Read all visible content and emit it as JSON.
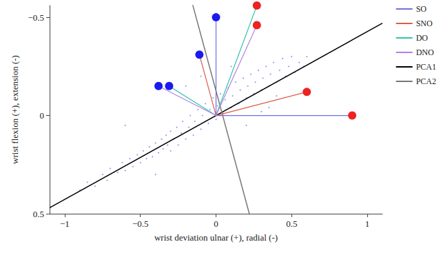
{
  "chart_data": {
    "type": "scatter",
    "x_label": "wrist deviation ulnar (+), radial (-)",
    "y_label": "wrist flexion (+), extension (-)",
    "xlim": [
      -1.1,
      1.1
    ],
    "xticks": [
      {
        "value": -1,
        "label": "−1"
      },
      {
        "value": -0.5,
        "label": "−0.5"
      },
      0,
      0.5,
      1
    ],
    "ylim": [
      -0.56,
      0.5
    ],
    "yticks": [
      {
        "value": -0.5,
        "label": "−0.5"
      },
      0,
      0.5
    ],
    "inverted_y": true,
    "grid": false,
    "legend": "right",
    "series": [
      {
        "type": "scatter",
        "color": "#8080f0",
        "marker": "dot",
        "values": [
          [
            -0.9,
            0.38
          ],
          [
            -0.85,
            0.34
          ],
          [
            -0.8,
            0.36
          ],
          [
            -0.75,
            0.3
          ],
          [
            -0.72,
            0.33
          ],
          [
            -0.7,
            0.27
          ],
          [
            -0.65,
            0.29
          ],
          [
            -0.62,
            0.24
          ],
          [
            -0.6,
            0.28
          ],
          [
            -0.57,
            0.22
          ],
          [
            -0.55,
            0.26
          ],
          [
            -0.52,
            0.2
          ],
          [
            -0.5,
            0.24
          ],
          [
            -0.48,
            0.18
          ],
          [
            -0.46,
            0.22
          ],
          [
            -0.44,
            0.16
          ],
          [
            -0.42,
            0.21
          ],
          [
            -0.4,
            0.14
          ],
          [
            -0.38,
            0.19
          ],
          [
            -0.36,
            0.12
          ],
          [
            -0.35,
            0.17
          ],
          [
            -0.33,
            0.1
          ],
          [
            -0.32,
            0.15
          ],
          [
            -0.3,
            0.08
          ],
          [
            -0.3,
            0.18
          ],
          [
            -0.28,
            0.12
          ],
          [
            -0.26,
            0.06
          ],
          [
            -0.25,
            0.15
          ],
          [
            -0.23,
            0.09
          ],
          [
            -0.22,
            0.03
          ],
          [
            -0.2,
            0.12
          ],
          [
            -0.18,
            0.06
          ],
          [
            -0.17,
            0.0
          ],
          [
            -0.15,
            0.1
          ],
          [
            -0.14,
            0.03
          ],
          [
            -0.12,
            -0.03
          ],
          [
            -0.1,
            0.07
          ],
          [
            -0.09,
            0.0
          ],
          [
            -0.07,
            -0.06
          ],
          [
            -0.05,
            0.04
          ],
          [
            -0.04,
            -0.03
          ],
          [
            -0.02,
            -0.09
          ],
          [
            0,
            0.02
          ],
          [
            0.01,
            -0.05
          ],
          [
            0.03,
            -0.11
          ],
          [
            0.05,
            -0.01
          ],
          [
            0.06,
            -0.08
          ],
          [
            0.08,
            -0.14
          ],
          [
            0.1,
            -0.04
          ],
          [
            0.11,
            -0.1
          ],
          [
            0.13,
            -0.17
          ],
          [
            0.15,
            -0.06
          ],
          [
            0.16,
            -0.13
          ],
          [
            0.18,
            -0.19
          ],
          [
            0.2,
            -0.09
          ],
          [
            0.21,
            -0.15
          ],
          [
            0.23,
            -0.21
          ],
          [
            0.25,
            -0.11
          ],
          [
            0.26,
            -0.17
          ],
          [
            0.28,
            -0.23
          ],
          [
            0.3,
            -0.13
          ],
          [
            0.31,
            -0.19
          ],
          [
            0.33,
            -0.25
          ],
          [
            0.35,
            -0.15
          ],
          [
            0.36,
            -0.21
          ],
          [
            0.38,
            -0.27
          ],
          [
            0.4,
            -0.17
          ],
          [
            0.42,
            -0.23
          ],
          [
            0.44,
            -0.29
          ],
          [
            0.46,
            -0.2
          ],
          [
            0.48,
            -0.25
          ],
          [
            0.5,
            -0.3
          ],
          [
            0.52,
            -0.22
          ],
          [
            0.55,
            -0.27
          ],
          [
            0.58,
            -0.25
          ],
          [
            0.6,
            -0.3
          ],
          [
            0.3,
            -0.02
          ],
          [
            0.35,
            -0.04
          ],
          [
            -0.2,
            -0.15
          ],
          [
            -0.6,
            0.05
          ],
          [
            0.1,
            -0.25
          ],
          [
            -0.1,
            -0.2
          ],
          [
            0.2,
            0.05
          ],
          [
            -0.4,
            0.3
          ],
          [
            0.4,
            -0.1
          ]
        ]
      },
      {
        "name": "SO",
        "type": "line",
        "color": "#7070e0",
        "marker": "circle",
        "values": [
          [
            0.9,
            0
          ],
          [
            0,
            0
          ],
          [
            0,
            -0.5
          ]
        ],
        "colors": [
          "#ee2222",
          null,
          "#1a1aee"
        ]
      },
      {
        "name": "SNO",
        "type": "line",
        "color": "#e05a4a",
        "marker": "circle",
        "values": [
          [
            0.6,
            -0.12
          ],
          [
            0,
            0
          ],
          [
            -0.11,
            -0.31
          ]
        ],
        "colors": [
          "#ee2222",
          null,
          "#1a1aee"
        ]
      },
      {
        "name": "DO",
        "type": "line",
        "color": "#33c4a8",
        "marker": "circle",
        "values": [
          [
            0.27,
            -0.56
          ],
          [
            0,
            0
          ],
          [
            -0.31,
            -0.15
          ]
        ],
        "colors": [
          "#ee2222",
          null,
          "#1a1aee"
        ]
      },
      {
        "name": "DNO",
        "type": "line",
        "color": "#b080e8",
        "marker": "circle",
        "values": [
          [
            0.27,
            -0.46
          ],
          [
            0,
            0
          ],
          [
            -0.38,
            -0.15
          ]
        ],
        "colors": [
          "#ee2222",
          null,
          "#1a1aee"
        ]
      },
      {
        "name": "PCA1",
        "type": "line",
        "color": "#000000",
        "marker": "none",
        "values": [
          [
            -1.1,
            0.47
          ],
          [
            1.1,
            -0.47
          ]
        ]
      },
      {
        "name": "PCA2",
        "type": "line",
        "color": "#777777",
        "marker": "none",
        "values": [
          [
            -0.16,
            -0.58
          ],
          [
            0.22,
            0.5
          ]
        ]
      }
    ]
  }
}
